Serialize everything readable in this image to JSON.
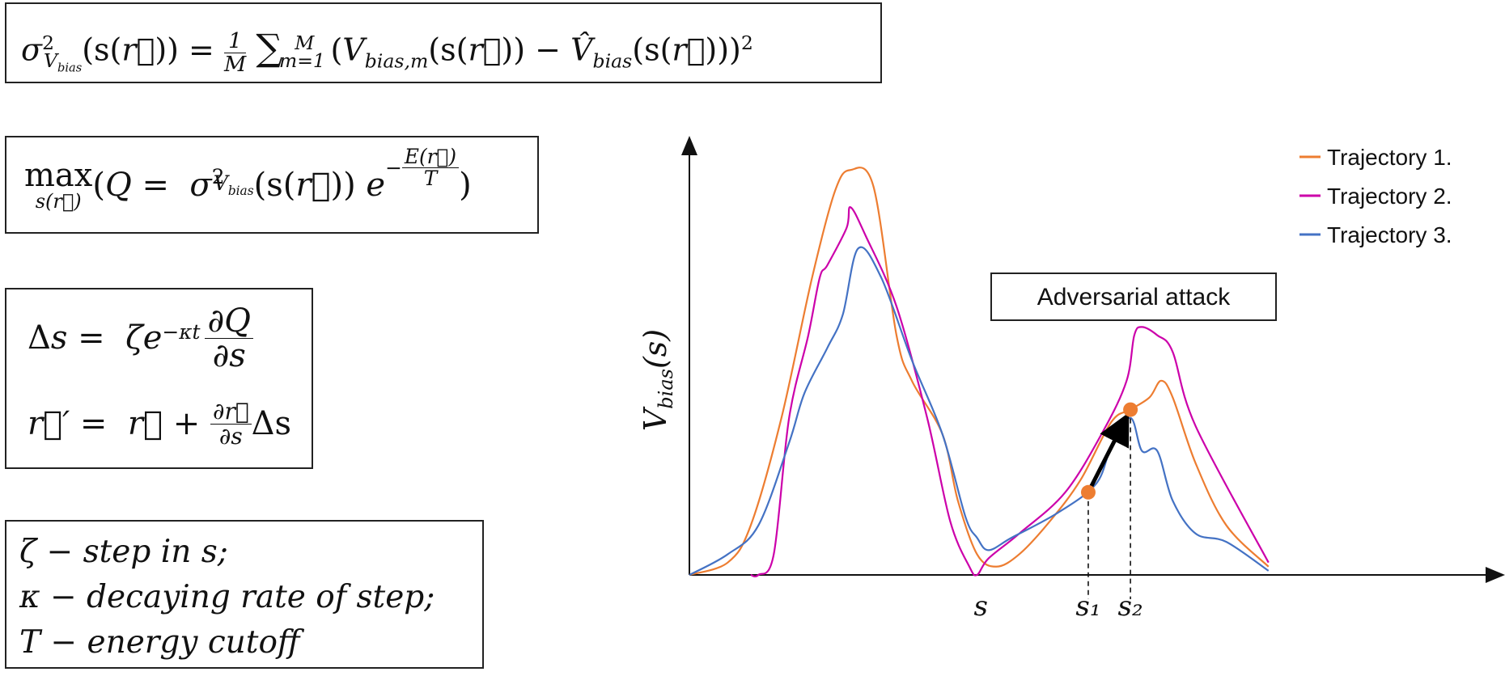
{
  "equations": {
    "variance": "σ²_{V_bias}(s(r⃗)) = (1/M) Σ_{m=1}^{M} (V_{bias,m}(s(r⃗)) − V̂_bias(s(r⃗)))²",
    "objective": "max_{s(r⃗)} (Q = σ²_{V_bias}(s(r⃗)) e^{−E(r⃗)/T})",
    "update_step": "Δs = ζ e^{−κt} ∂Q/∂s",
    "update_coords": "r⃗′ = r⃗ + (∂r⃗/∂s) Δs"
  },
  "definitions": [
    {
      "symbol": "ζ",
      "text": "− step in s;"
    },
    {
      "symbol": "κ",
      "text": "− decaying rate of step;"
    },
    {
      "symbol": "T",
      "text": "− energy cutoff"
    }
  ],
  "chart_data": {
    "type": "line",
    "ylabel": "V_bias(s)",
    "xlabel": "",
    "x_tick_labels": [
      "s",
      "s₁",
      "s₂"
    ],
    "x_tick_positions": [
      0.38,
      0.52,
      0.575
    ],
    "xlim": [
      0,
      1
    ],
    "ylim": [
      0,
      1
    ],
    "annotation": "Adversarial attack",
    "legend_position": "top-right",
    "colors": {
      "trajectory_1": "#ED7D31",
      "trajectory_2": "#CC00AA",
      "trajectory_3": "#4472C4",
      "marker": "#ED7D31",
      "arrow": "#000000"
    },
    "series": [
      {
        "name": "Trajectory 1.",
        "color": "#ED7D31",
        "x": [
          0.0,
          0.05,
          0.08,
          0.12,
          0.16,
          0.19,
          0.21,
          0.24,
          0.27,
          0.29,
          0.33,
          0.35,
          0.375,
          0.4,
          0.43,
          0.47,
          0.51,
          0.55,
          0.575,
          0.6,
          0.615,
          0.63,
          0.66,
          0.7,
          0.755
        ],
        "y": [
          0.0,
          0.03,
          0.12,
          0.38,
          0.72,
          0.93,
          0.98,
          0.94,
          0.58,
          0.47,
          0.34,
          0.18,
          0.05,
          0.02,
          0.05,
          0.13,
          0.23,
          0.37,
          0.4,
          0.43,
          0.47,
          0.43,
          0.27,
          0.12,
          0.02
        ]
      },
      {
        "name": "Trajectory 2.",
        "color": "#CC00AA",
        "x": [
          0.08,
          0.09,
          0.11,
          0.13,
          0.155,
          0.17,
          0.18,
          0.205,
          0.21,
          0.23,
          0.27,
          0.31,
          0.34,
          0.365,
          0.375,
          0.39,
          0.43,
          0.49,
          0.54,
          0.57,
          0.58,
          0.59,
          0.61,
          0.63,
          0.66,
          0.755
        ],
        "y": [
          0.0,
          0.0,
          0.05,
          0.38,
          0.58,
          0.72,
          0.75,
          0.84,
          0.89,
          0.82,
          0.65,
          0.38,
          0.13,
          0.02,
          0.0,
          0.04,
          0.1,
          0.2,
          0.35,
          0.47,
          0.58,
          0.6,
          0.58,
          0.54,
          0.36,
          0.03
        ]
      },
      {
        "name": "Trajectory 3.",
        "color": "#4472C4",
        "x": [
          0.0,
          0.05,
          0.09,
          0.13,
          0.15,
          0.18,
          0.2,
          0.22,
          0.25,
          0.29,
          0.33,
          0.36,
          0.375,
          0.39,
          0.42,
          0.48,
          0.53,
          0.55,
          0.575,
          0.59,
          0.61,
          0.63,
          0.66,
          0.7,
          0.755
        ],
        "y": [
          0.0,
          0.05,
          0.12,
          0.32,
          0.44,
          0.55,
          0.63,
          0.79,
          0.72,
          0.52,
          0.34,
          0.14,
          0.09,
          0.06,
          0.09,
          0.15,
          0.22,
          0.31,
          0.38,
          0.3,
          0.3,
          0.18,
          0.1,
          0.08,
          0.01
        ]
      }
    ],
    "markers": [
      {
        "label": "s₁",
        "x": 0.52,
        "y": 0.2
      },
      {
        "label": "s₂",
        "x": 0.575,
        "y": 0.4
      }
    ]
  }
}
